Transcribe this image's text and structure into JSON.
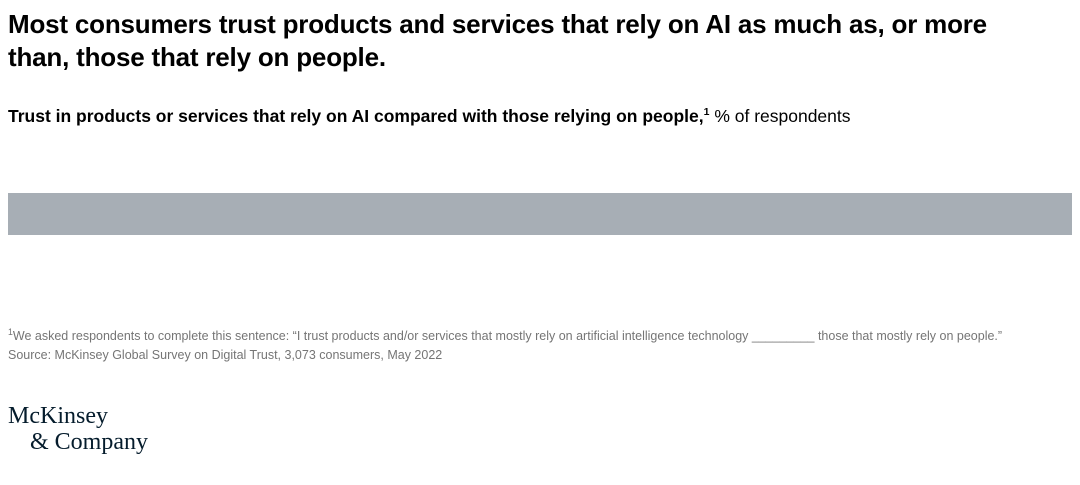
{
  "page": {
    "title": "Most consumers trust products and services that rely on AI as much as, or more than, those that rely on people.",
    "subtitle": {
      "bold": "Trust in products or services that rely on AI compared with those relying on people,",
      "footnote_marker": "1",
      "regular": " % of respondents"
    },
    "footnote": {
      "marker": "1",
      "text": "We asked respondents to complete this sentence: “I trust products and/or services that mostly rely on artificial intelligence technology _________ those that mostly rely on people.”"
    },
    "source": "Source: McKinsey Global Survey on Digital Trust, 3,073 consumers, May 2022",
    "logo": {
      "line1": "McKinsey",
      "line2": "& Company"
    }
  },
  "chart_data": {
    "type": "bar",
    "orientation": "horizontal",
    "title": "Trust in products or services that rely on AI compared with those relying on people, % of respondents",
    "categories": [
      ""
    ],
    "segments": [
      {
        "label": "",
        "value": 100,
        "color": "#a7aeb5"
      }
    ],
    "xlim": [
      0,
      100
    ],
    "legend": "none",
    "data_labels_visible": false,
    "grid": false
  },
  "colors": {
    "title": "#000000",
    "footnote": "#757575",
    "logo": "#051c2c",
    "bar": "#a7aeb5"
  }
}
